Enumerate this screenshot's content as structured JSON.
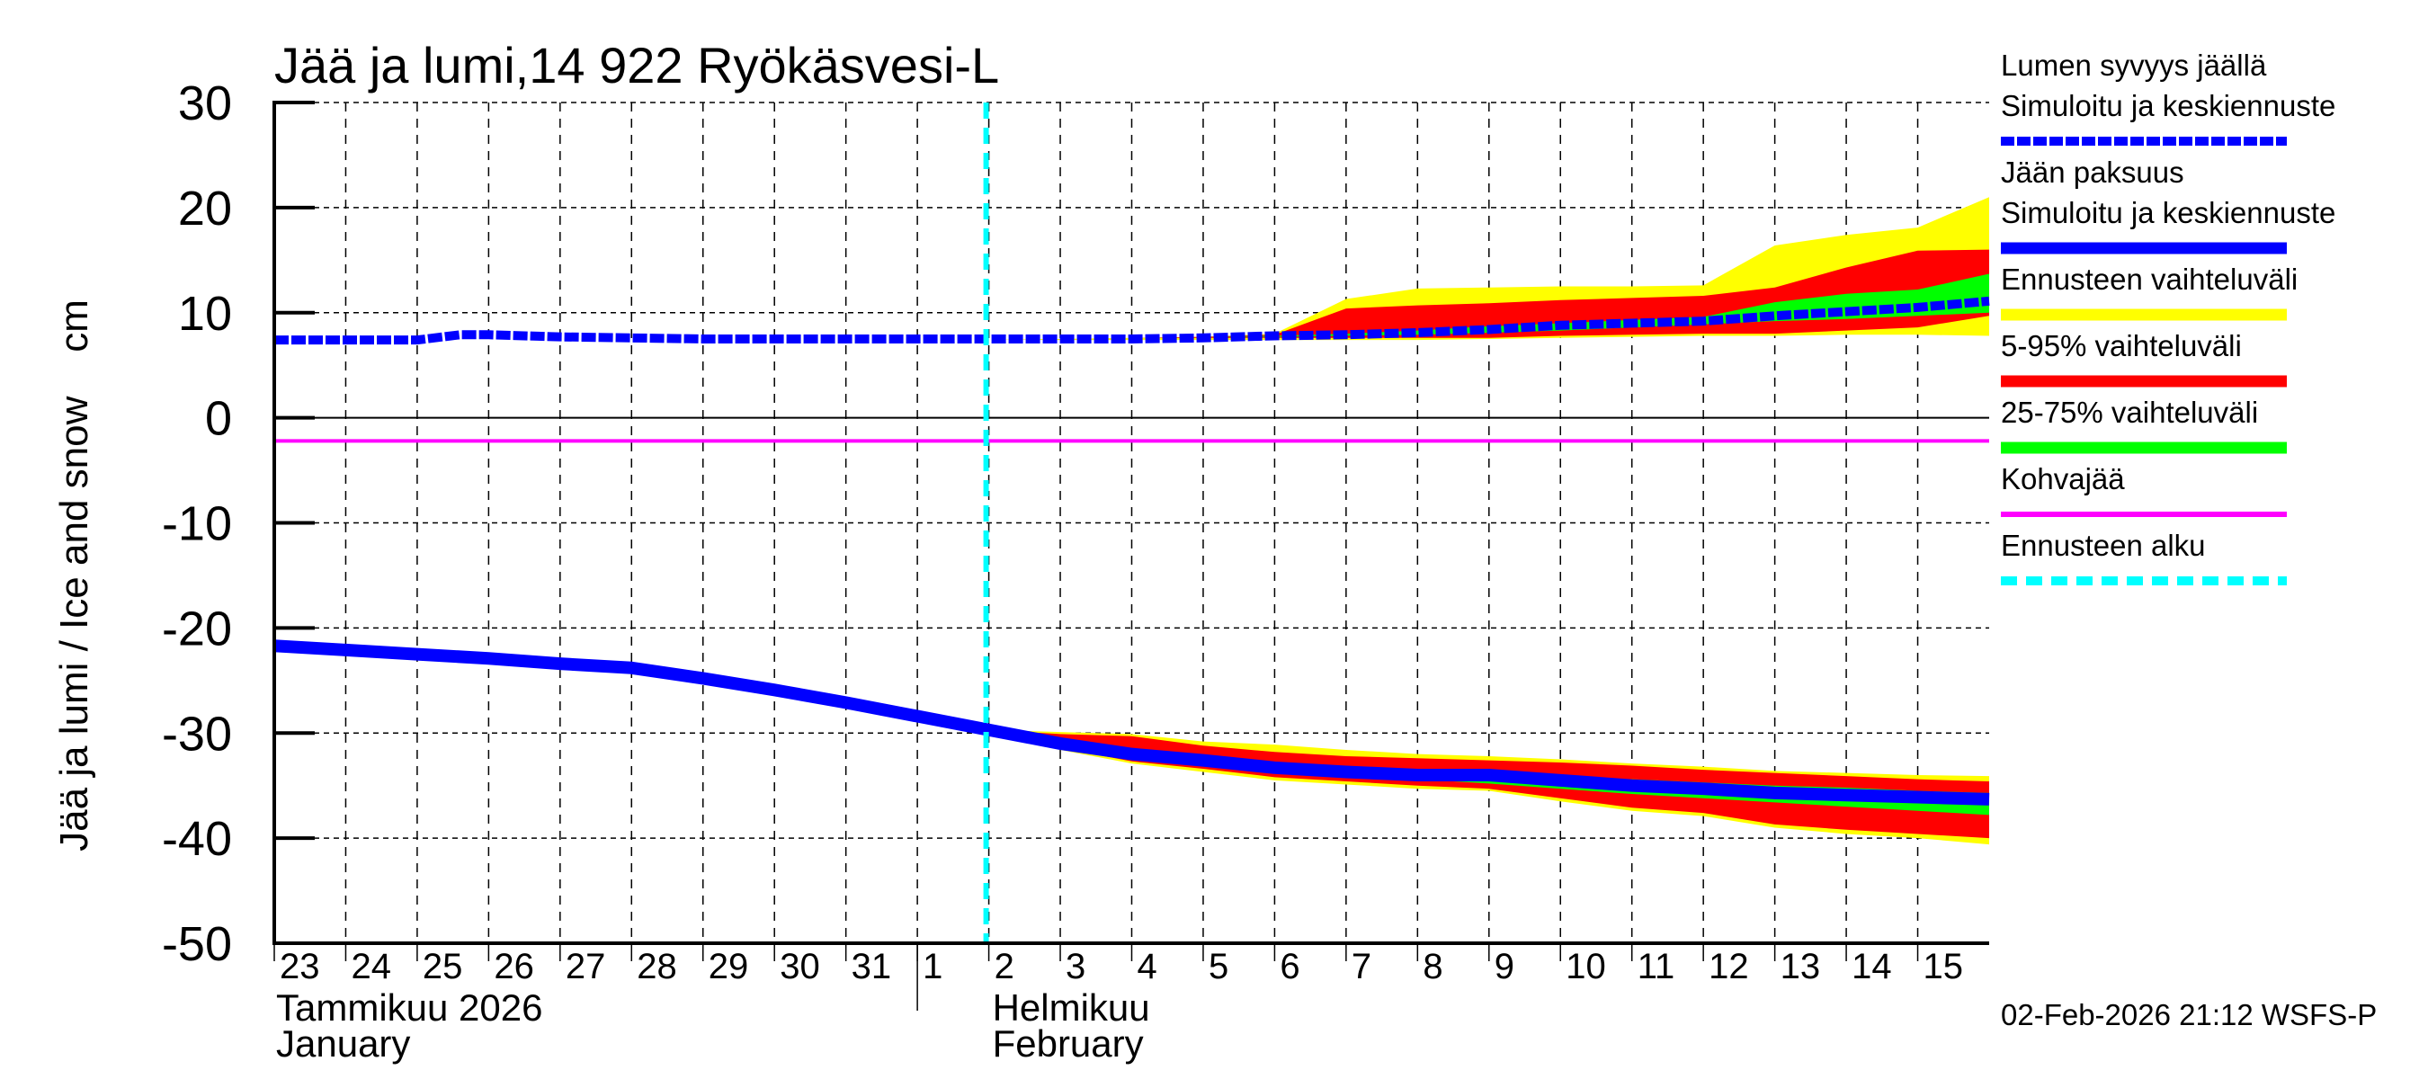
{
  "chart_data": {
    "type": "area",
    "title": "Jää ja lumi,14 922 Ryökäsvesi-L",
    "ylabel": "Jää ja lumi / Ice and snow    cm",
    "xlabel": "",
    "ylim": [
      -50,
      30
    ],
    "yticks": [
      30,
      20,
      10,
      0,
      -10,
      -20,
      -30,
      -40,
      -50
    ],
    "grid": true,
    "legend_position": "right",
    "x_tick_labels": [
      "23",
      "24",
      "25",
      "26",
      "27",
      "28",
      "29",
      "30",
      "31",
      "1",
      "2",
      "3",
      "4",
      "5",
      "6",
      "7",
      "8",
      "9",
      "10",
      "11",
      "12",
      "13",
      "14",
      "15"
    ],
    "month_labels": [
      {
        "line1": "Tammikuu  2026",
        "line2": "January",
        "at_day_index": 0
      },
      {
        "line1": "Helmikuu",
        "line2": "February",
        "at_day_index": 10
      }
    ],
    "x_day_index_range": [
      0,
      24
    ],
    "forecast_start_day_index": 10,
    "kohvajaa_level": -2.2,
    "snow_depth_on_ice": {
      "name": "Lumen syvyys jäällä – Simuloitu ja keskiennuste",
      "x": [
        0,
        1,
        2,
        2.6,
        3,
        4,
        5,
        6,
        7,
        8,
        9,
        10,
        11,
        12,
        13,
        14,
        15,
        16,
        17,
        18,
        19,
        20,
        21,
        22,
        23,
        24
      ],
      "values": [
        7.4,
        7.4,
        7.4,
        7.9,
        7.9,
        7.7,
        7.6,
        7.5,
        7.5,
        7.5,
        7.5,
        7.5,
        7.5,
        7.5,
        7.6,
        7.8,
        7.9,
        8.1,
        8.4,
        8.8,
        9.0,
        9.2,
        9.7,
        10.1,
        10.5,
        11.1
      ]
    },
    "snow_bands": {
      "x": [
        10,
        11,
        12,
        13,
        14,
        15,
        16,
        17,
        18,
        19,
        20,
        21,
        22,
        23,
        24
      ],
      "yellow_top": [
        7.5,
        7.5,
        7.6,
        7.7,
        8.0,
        11.3,
        12.3,
        12.4,
        12.5,
        12.5,
        12.6,
        16.4,
        17.4,
        18.1,
        21.0
      ],
      "red_top": [
        7.5,
        7.5,
        7.6,
        7.7,
        7.9,
        10.4,
        10.7,
        10.9,
        11.2,
        11.4,
        11.6,
        12.4,
        14.3,
        15.9,
        16.0
      ],
      "green_top": [
        7.5,
        7.5,
        7.6,
        7.7,
        7.8,
        8.0,
        8.3,
        8.7,
        9.0,
        9.3,
        9.6,
        11.0,
        11.8,
        12.2,
        13.7
      ],
      "green_bottom": [
        7.5,
        7.5,
        7.6,
        7.7,
        7.7,
        7.8,
        7.9,
        8.1,
        8.3,
        8.6,
        8.9,
        9.2,
        9.4,
        9.7,
        10.0
      ],
      "red_bottom": [
        7.5,
        7.5,
        7.6,
        7.6,
        7.6,
        7.6,
        7.6,
        7.6,
        7.8,
        7.9,
        8.0,
        8.0,
        8.3,
        8.6,
        9.7
      ],
      "yellow_bottom": [
        7.5,
        7.4,
        7.4,
        7.4,
        7.4,
        7.4,
        7.4,
        7.5,
        7.6,
        7.7,
        7.8,
        7.8,
        7.9,
        7.9,
        7.8
      ]
    },
    "ice_thickness": {
      "name": "Jään paksuus – Simuloitu ja keskiennuste",
      "x": [
        0,
        1,
        2,
        3,
        4,
        5,
        6,
        7,
        8,
        9,
        10,
        11,
        12,
        13,
        14,
        15,
        16,
        17,
        18,
        19,
        20,
        21,
        22,
        23,
        24
      ],
      "values": [
        -21.7,
        -22.1,
        -22.5,
        -22.9,
        -23.4,
        -23.8,
        -24.8,
        -25.9,
        -27.1,
        -28.4,
        -29.7,
        -31.0,
        -32.0,
        -32.6,
        -33.3,
        -33.7,
        -34.0,
        -34.0,
        -34.5,
        -35.0,
        -35.3,
        -35.7,
        -35.9,
        -36.1,
        -36.3
      ]
    },
    "ice_bands": {
      "x": [
        10,
        11,
        12,
        13,
        14,
        15,
        16,
        17,
        18,
        19,
        20,
        21,
        22,
        23,
        24
      ],
      "yellow_top": [
        -29.7,
        -29.9,
        -30.1,
        -30.8,
        -31.1,
        -31.6,
        -32.0,
        -32.2,
        -32.5,
        -32.9,
        -33.2,
        -33.6,
        -33.8,
        -34.0,
        -34.1
      ],
      "red_top": [
        -29.7,
        -30.1,
        -30.3,
        -31.2,
        -31.8,
        -32.2,
        -32.4,
        -32.6,
        -32.8,
        -33.1,
        -33.5,
        -33.8,
        -34.1,
        -34.4,
        -34.6
      ],
      "green_top": [
        -29.7,
        -30.8,
        -31.8,
        -32.4,
        -33.0,
        -33.4,
        -33.8,
        -34.0,
        -34.2,
        -34.4,
        -34.7,
        -35.0,
        -35.2,
        -35.5,
        -35.7
      ],
      "green_bottom": [
        -29.7,
        -31.2,
        -32.2,
        -32.9,
        -33.6,
        -34.1,
        -34.4,
        -34.8,
        -35.3,
        -35.8,
        -36.2,
        -36.6,
        -37.0,
        -37.4,
        -37.8
      ],
      "red_bottom": [
        -29.7,
        -31.4,
        -32.7,
        -33.4,
        -34.2,
        -34.6,
        -35.0,
        -35.3,
        -36.2,
        -37.1,
        -37.6,
        -38.7,
        -39.2,
        -39.6,
        -40.0
      ],
      "yellow_bottom": [
        -29.7,
        -31.6,
        -32.9,
        -33.7,
        -34.5,
        -34.9,
        -35.3,
        -35.5,
        -36.5,
        -37.4,
        -37.9,
        -39.0,
        -39.6,
        -40.0,
        -40.6
      ]
    }
  },
  "legend": {
    "items": [
      {
        "line1": "Lumen syvyys jäällä",
        "line2": "Simuloitu ja keskiennuste",
        "color": "#0000ff",
        "style": "dotted-thick"
      },
      {
        "line1": "Jään paksuus",
        "line2": "Simuloitu ja keskiennuste",
        "color": "#0000ff",
        "style": "solid-thick"
      },
      {
        "line1": "Ennusteen vaihteluväli",
        "color": "#ffff00",
        "style": "solid-thick"
      },
      {
        "line1": "5-95% vaihteluväli",
        "color": "#ff0000",
        "style": "solid-thick"
      },
      {
        "line1": "25-75% vaihteluväli",
        "color": "#00ff00",
        "style": "solid-thick"
      },
      {
        "line1": "Kohvajää",
        "color": "#ff00ff",
        "style": "solid"
      },
      {
        "line1": "Ennusteen alku",
        "color": "#00ffff",
        "style": "dashed"
      }
    ]
  },
  "colors": {
    "yellow": "#ffff00",
    "red": "#ff0000",
    "green": "#00ff00",
    "blue": "#0000ff",
    "magenta": "#ff00ff",
    "cyan": "#00ffff"
  },
  "footer": {
    "timestamp": "02-Feb-2026 21:12 WSFS-P"
  }
}
